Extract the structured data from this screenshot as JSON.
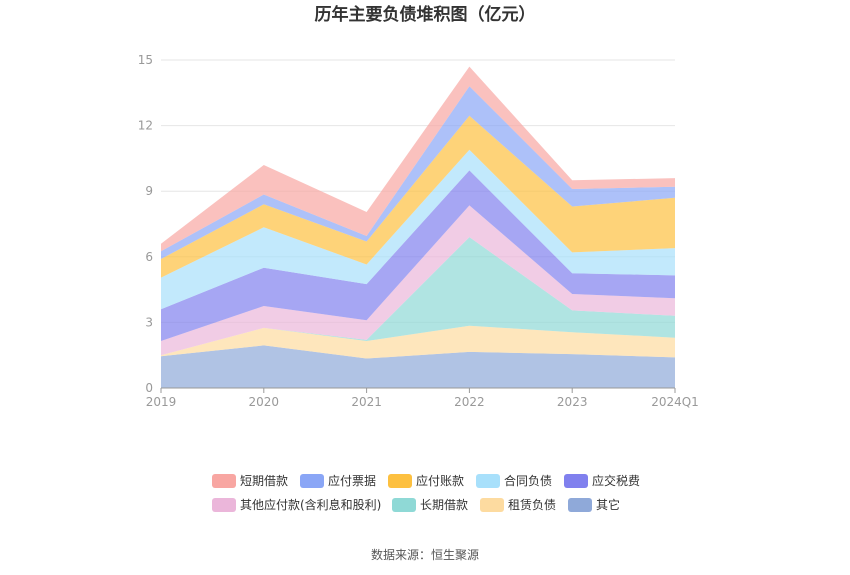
{
  "chart_data": {
    "type": "area",
    "stacked": true,
    "title": "历年主要负债堆积图（亿元）",
    "categories": [
      "2019",
      "2020",
      "2021",
      "2022",
      "2023",
      "2024Q1"
    ],
    "yticks": [
      0,
      3,
      6,
      9,
      12,
      15
    ],
    "ylim": [
      0,
      15
    ],
    "grid": true,
    "legend_position": "bottom",
    "series": [
      {
        "name": "其它",
        "color": "#8fa9d9",
        "values": [
          1.45,
          1.95,
          1.35,
          1.65,
          1.55,
          1.4
        ]
      },
      {
        "name": "租赁负债",
        "color": "#fddba0",
        "values": [
          0.05,
          0.8,
          0.8,
          1.2,
          1.0,
          0.9
        ]
      },
      {
        "name": "长期借款",
        "color": "#8fd9d6",
        "values": [
          0.0,
          0.0,
          0.05,
          4.05,
          1.0,
          1.0
        ]
      },
      {
        "name": "其他应付款(含利息和股利)",
        "color": "#ebb6da",
        "values": [
          0.65,
          1.0,
          0.9,
          1.45,
          0.75,
          0.8
        ]
      },
      {
        "name": "应交税费",
        "color": "#8080ee",
        "values": [
          1.45,
          1.75,
          1.65,
          1.6,
          0.95,
          1.05
        ]
      },
      {
        "name": "合同负债",
        "color": "#a8e0fb",
        "values": [
          1.45,
          1.85,
          0.9,
          0.95,
          0.95,
          1.25
        ]
      },
      {
        "name": "应付账款",
        "color": "#fdc040",
        "values": [
          0.85,
          1.05,
          1.05,
          1.55,
          2.1,
          2.3
        ]
      },
      {
        "name": "应付票据",
        "color": "#8aa6f6",
        "values": [
          0.35,
          0.45,
          0.25,
          1.35,
          0.8,
          0.5
        ]
      },
      {
        "name": "短期借款",
        "color": "#f8a6a2",
        "values": [
          0.35,
          1.35,
          1.1,
          0.9,
          0.4,
          0.4
        ]
      }
    ]
  },
  "footer": {
    "source": "数据来源：恒生聚源"
  }
}
